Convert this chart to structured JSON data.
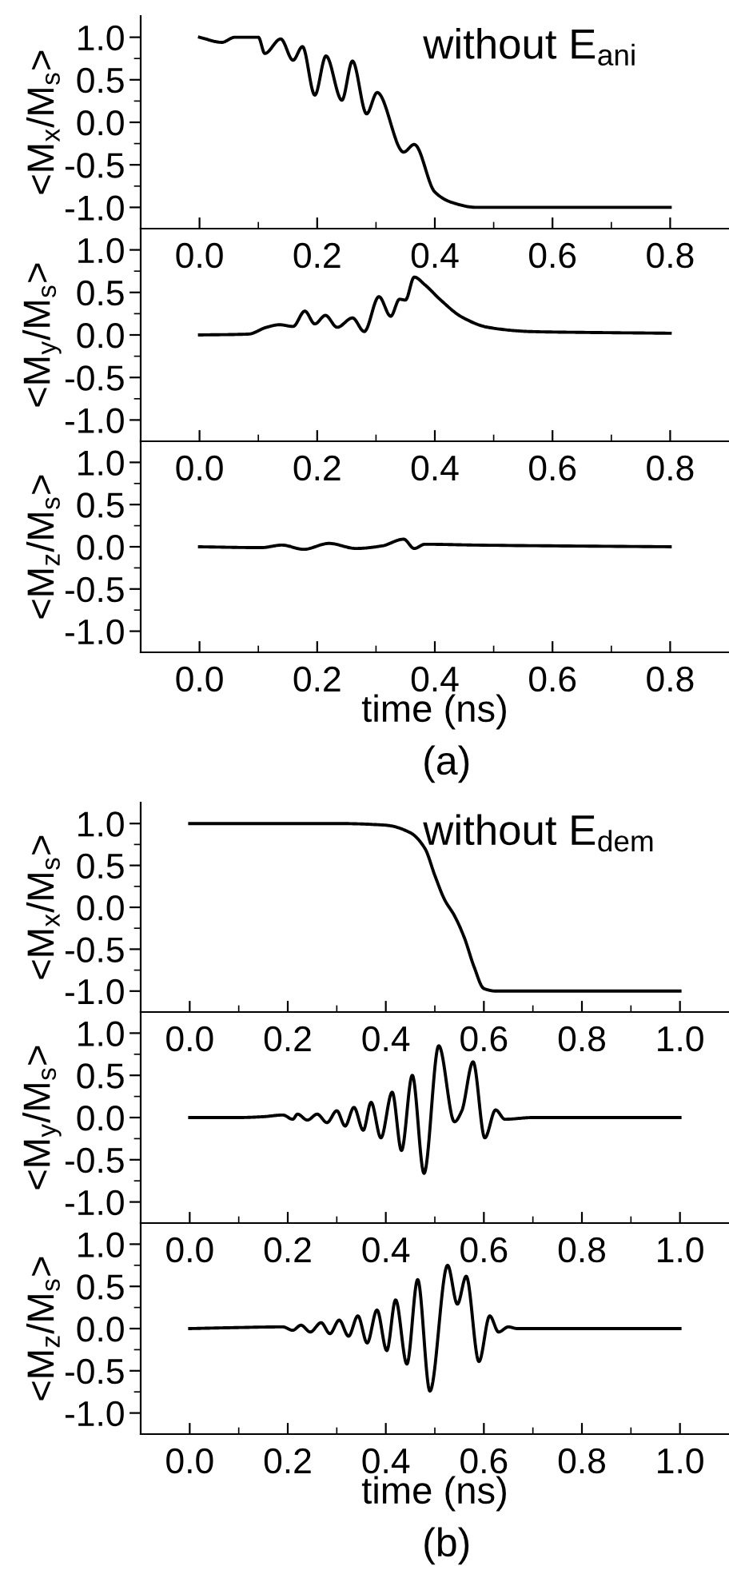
{
  "chart_data": [
    {
      "type": "line",
      "color": "#000000",
      "ylabel": "<M$_{x}$/M$_{s}$>",
      "annotations": [
        "without E$_{ani}$"
      ],
      "xlim": [
        -0.1,
        0.9
      ],
      "xticks": [
        {
          "value": 0,
          "label": "0.0"
        },
        {
          "value": 0.1,
          "label": null
        },
        {
          "value": 0.2,
          "label": "0.2"
        },
        {
          "value": 0.3,
          "label": null
        },
        {
          "value": 0.4,
          "label": "0.4"
        },
        {
          "value": 0.5,
          "label": null
        },
        {
          "value": 0.6,
          "label": "0.6"
        },
        {
          "value": 0.7,
          "label": null
        },
        {
          "value": 0.8,
          "label": "0.8"
        }
      ],
      "ylim": [
        -1.25,
        1.25
      ],
      "yticks": [
        {
          "value": -1,
          "label": "-1.0"
        },
        {
          "value": -0.75,
          "label": null
        },
        {
          "value": -0.5,
          "label": "-0.5"
        },
        {
          "value": -0.25,
          "label": null
        },
        {
          "value": 0,
          "label": "0.0"
        },
        {
          "value": 0.25,
          "label": null
        },
        {
          "value": 0.5,
          "label": "0.5"
        },
        {
          "value": 0.75,
          "label": null
        },
        {
          "value": 1,
          "label": "1.0"
        }
      ],
      "x": [
        0,
        0.038,
        0.06,
        0.1,
        0.111,
        0.138,
        0.159,
        0.175,
        0.196,
        0.215,
        0.242,
        0.26,
        0.284,
        0.302,
        0.347,
        0.365,
        0.4,
        0.428,
        0.47,
        0.6,
        0.8
      ],
      "values": [
        1.0,
        0.94,
        1.0,
        1.0,
        0.81,
        0.98,
        0.73,
        0.89,
        0.32,
        0.78,
        0.26,
        0.72,
        0.1,
        0.35,
        -0.35,
        -0.26,
        -0.82,
        -0.94,
        -1.0,
        -1.0,
        -1.0
      ]
    },
    {
      "type": "line",
      "color": "#000000",
      "ylabel": "<M$_{y}$/M$_{s}$>",
      "xlim": [
        -0.1,
        0.9
      ],
      "xticks": [
        {
          "value": 0,
          "label": "0.0"
        },
        {
          "value": 0.1,
          "label": null
        },
        {
          "value": 0.2,
          "label": "0.2"
        },
        {
          "value": 0.3,
          "label": null
        },
        {
          "value": 0.4,
          "label": "0.4"
        },
        {
          "value": 0.5,
          "label": null
        },
        {
          "value": 0.6,
          "label": "0.6"
        },
        {
          "value": 0.7,
          "label": null
        },
        {
          "value": 0.8,
          "label": "0.8"
        }
      ],
      "ylim": [
        -1.25,
        1.25
      ],
      "yticks": [
        {
          "value": -1,
          "label": "-1.0"
        },
        {
          "value": -0.75,
          "label": null
        },
        {
          "value": -0.5,
          "label": "-0.5"
        },
        {
          "value": -0.25,
          "label": null
        },
        {
          "value": 0,
          "label": "0.0"
        },
        {
          "value": 0.25,
          "label": null
        },
        {
          "value": 0.5,
          "label": "0.5"
        },
        {
          "value": 0.75,
          "label": null
        },
        {
          "value": 1,
          "label": "1.0"
        }
      ],
      "x": [
        0,
        0.083,
        0.114,
        0.136,
        0.159,
        0.179,
        0.196,
        0.214,
        0.234,
        0.26,
        0.28,
        0.305,
        0.325,
        0.34,
        0.35,
        0.365,
        0.383,
        0.41,
        0.446,
        0.49,
        0.562,
        0.652,
        0.8
      ],
      "values": [
        0,
        0.01,
        0.09,
        0.12,
        0.1,
        0.28,
        0.13,
        0.23,
        0.09,
        0.2,
        0.04,
        0.45,
        0.22,
        0.42,
        0.41,
        0.68,
        0.59,
        0.41,
        0.21,
        0.09,
        0.04,
        0.03,
        0.02
      ]
    },
    {
      "type": "line",
      "color": "#000000",
      "ylabel": "<M$_{z}$/M$_{s}$>",
      "xlabel": "time (ns)",
      "annotations": [
        "(a)"
      ],
      "xlim": [
        -0.1,
        0.9
      ],
      "xticks": [
        {
          "value": 0,
          "label": "0.0"
        },
        {
          "value": 0.1,
          "label": null
        },
        {
          "value": 0.2,
          "label": "0.2"
        },
        {
          "value": 0.3,
          "label": null
        },
        {
          "value": 0.4,
          "label": "0.4"
        },
        {
          "value": 0.5,
          "label": null
        },
        {
          "value": 0.6,
          "label": "0.6"
        },
        {
          "value": 0.7,
          "label": null
        },
        {
          "value": 0.8,
          "label": "0.8"
        }
      ],
      "ylim": [
        -1.25,
        1.25
      ],
      "yticks": [
        {
          "value": -1,
          "label": "-1.0"
        },
        {
          "value": -0.75,
          "label": null
        },
        {
          "value": -0.5,
          "label": "-0.5"
        },
        {
          "value": -0.25,
          "label": null
        },
        {
          "value": 0,
          "label": "0.0"
        },
        {
          "value": 0.25,
          "label": null
        },
        {
          "value": 0.5,
          "label": "0.5"
        },
        {
          "value": 0.75,
          "label": null
        },
        {
          "value": 1,
          "label": "1.0"
        }
      ],
      "x": [
        0,
        0.105,
        0.14,
        0.177,
        0.22,
        0.266,
        0.31,
        0.347,
        0.365,
        0.383,
        0.47,
        0.8
      ],
      "values": [
        0,
        -0.01,
        0.02,
        -0.03,
        0.04,
        -0.02,
        0.01,
        0.09,
        -0.02,
        0.03,
        0.02,
        0
      ]
    },
    {
      "type": "line",
      "color": "#000000",
      "ylabel": "<M$_{x}$/M$_{s}$>",
      "annotations": [
        "without E$_{dem}$"
      ],
      "xlim": [
        -0.1,
        1.1
      ],
      "xticks": [
        {
          "value": 0,
          "label": "0.0"
        },
        {
          "value": 0.1,
          "label": null
        },
        {
          "value": 0.2,
          "label": "0.2"
        },
        {
          "value": 0.3,
          "label": null
        },
        {
          "value": 0.4,
          "label": "0.4"
        },
        {
          "value": 0.5,
          "label": null
        },
        {
          "value": 0.6,
          "label": "0.6"
        },
        {
          "value": 0.7,
          "label": null
        },
        {
          "value": 0.8,
          "label": "0.8"
        },
        {
          "value": 0.9,
          "label": null
        },
        {
          "value": 1,
          "label": "1.0"
        }
      ],
      "ylim": [
        -1.25,
        1.25
      ],
      "yticks": [
        {
          "value": -1,
          "label": "-1.0"
        },
        {
          "value": -0.75,
          "label": null
        },
        {
          "value": -0.5,
          "label": "-0.5"
        },
        {
          "value": -0.25,
          "label": null
        },
        {
          "value": 0,
          "label": "0.0"
        },
        {
          "value": 0.25,
          "label": null
        },
        {
          "value": 0.5,
          "label": "0.5"
        },
        {
          "value": 0.75,
          "label": null
        },
        {
          "value": 1,
          "label": "1.0"
        }
      ],
      "x": [
        0,
        0.3,
        0.4,
        0.45,
        0.48,
        0.5,
        0.52,
        0.54,
        0.56,
        0.58,
        0.6,
        0.625,
        1.0
      ],
      "values": [
        1.0,
        1.0,
        0.98,
        0.89,
        0.7,
        0.38,
        0.09,
        -0.1,
        -0.36,
        -0.71,
        -0.97,
        -1.0,
        -1.0
      ]
    },
    {
      "type": "line",
      "color": "#000000",
      "ylabel": "<M$_{y}$/M$_{s}$>",
      "xlim": [
        -0.1,
        1.1
      ],
      "xticks": [
        {
          "value": 0,
          "label": "0.0"
        },
        {
          "value": 0.1,
          "label": null
        },
        {
          "value": 0.2,
          "label": "0.2"
        },
        {
          "value": 0.3,
          "label": null
        },
        {
          "value": 0.4,
          "label": "0.4"
        },
        {
          "value": 0.5,
          "label": null
        },
        {
          "value": 0.6,
          "label": "0.6"
        },
        {
          "value": 0.7,
          "label": null
        },
        {
          "value": 0.8,
          "label": "0.8"
        },
        {
          "value": 0.9,
          "label": null
        },
        {
          "value": 1,
          "label": "1.0"
        }
      ],
      "ylim": [
        -1.25,
        1.25
      ],
      "yticks": [
        {
          "value": -1,
          "label": "-1.0"
        },
        {
          "value": -0.75,
          "label": null
        },
        {
          "value": -0.5,
          "label": "-0.5"
        },
        {
          "value": -0.25,
          "label": null
        },
        {
          "value": 0,
          "label": "0.0"
        },
        {
          "value": 0.25,
          "label": null
        },
        {
          "value": 0.5,
          "label": "0.5"
        },
        {
          "value": 0.75,
          "label": null
        },
        {
          "value": 1,
          "label": "1.0"
        }
      ],
      "x": [
        0,
        0.1,
        0.15,
        0.19,
        0.21,
        0.22,
        0.24,
        0.26,
        0.28,
        0.3,
        0.317,
        0.335,
        0.354,
        0.37,
        0.39,
        0.413,
        0.432,
        0.454,
        0.478,
        0.508,
        0.54,
        0.555,
        0.578,
        0.602,
        0.624,
        0.643,
        0.7,
        1.0
      ],
      "values": [
        0,
        0,
        0.01,
        0.03,
        -0.02,
        0.04,
        -0.03,
        0.04,
        -0.06,
        0.08,
        -0.1,
        0.12,
        -0.15,
        0.18,
        -0.24,
        0.3,
        -0.39,
        0.5,
        -0.66,
        0.85,
        -0.05,
        0.08,
        0.66,
        -0.24,
        0.09,
        -0.02,
        0,
        0
      ]
    },
    {
      "type": "line",
      "color": "#000000",
      "ylabel": "<M$_{z}$/M$_{s}$>",
      "xlabel": "time (ns)",
      "annotations": [
        "(b)"
      ],
      "xlim": [
        -0.1,
        1.1
      ],
      "xticks": [
        {
          "value": 0,
          "label": "0.0"
        },
        {
          "value": 0.1,
          "label": null
        },
        {
          "value": 0.2,
          "label": "0.2"
        },
        {
          "value": 0.3,
          "label": null
        },
        {
          "value": 0.4,
          "label": "0.4"
        },
        {
          "value": 0.5,
          "label": null
        },
        {
          "value": 0.6,
          "label": "0.6"
        },
        {
          "value": 0.7,
          "label": null
        },
        {
          "value": 0.8,
          "label": "0.8"
        },
        {
          "value": 0.9,
          "label": null
        },
        {
          "value": 1,
          "label": "1.0"
        }
      ],
      "ylim": [
        -1.25,
        1.25
      ],
      "yticks": [
        {
          "value": -1,
          "label": "-1.0"
        },
        {
          "value": -0.75,
          "label": null
        },
        {
          "value": -0.5,
          "label": "-0.5"
        },
        {
          "value": -0.25,
          "label": null
        },
        {
          "value": 0,
          "label": "0.0"
        },
        {
          "value": 0.25,
          "label": null
        },
        {
          "value": 0.5,
          "label": "0.5"
        },
        {
          "value": 0.75,
          "label": null
        },
        {
          "value": 1,
          "label": "1.0"
        }
      ],
      "x": [
        0,
        0.08,
        0.19,
        0.21,
        0.227,
        0.246,
        0.268,
        0.286,
        0.305,
        0.324,
        0.343,
        0.362,
        0.382,
        0.402,
        0.42,
        0.443,
        0.465,
        0.49,
        0.526,
        0.546,
        0.564,
        0.59,
        0.612,
        0.63,
        0.65,
        0.668,
        1.0
      ],
      "values": [
        0,
        0.01,
        0.02,
        -0.02,
        0.04,
        -0.04,
        0.07,
        -0.06,
        0.1,
        -0.09,
        0.15,
        -0.17,
        0.22,
        -0.26,
        0.34,
        -0.42,
        0.58,
        -0.74,
        0.75,
        0.29,
        0.62,
        -0.39,
        0.15,
        -0.04,
        0.02,
        0,
        0
      ]
    }
  ]
}
